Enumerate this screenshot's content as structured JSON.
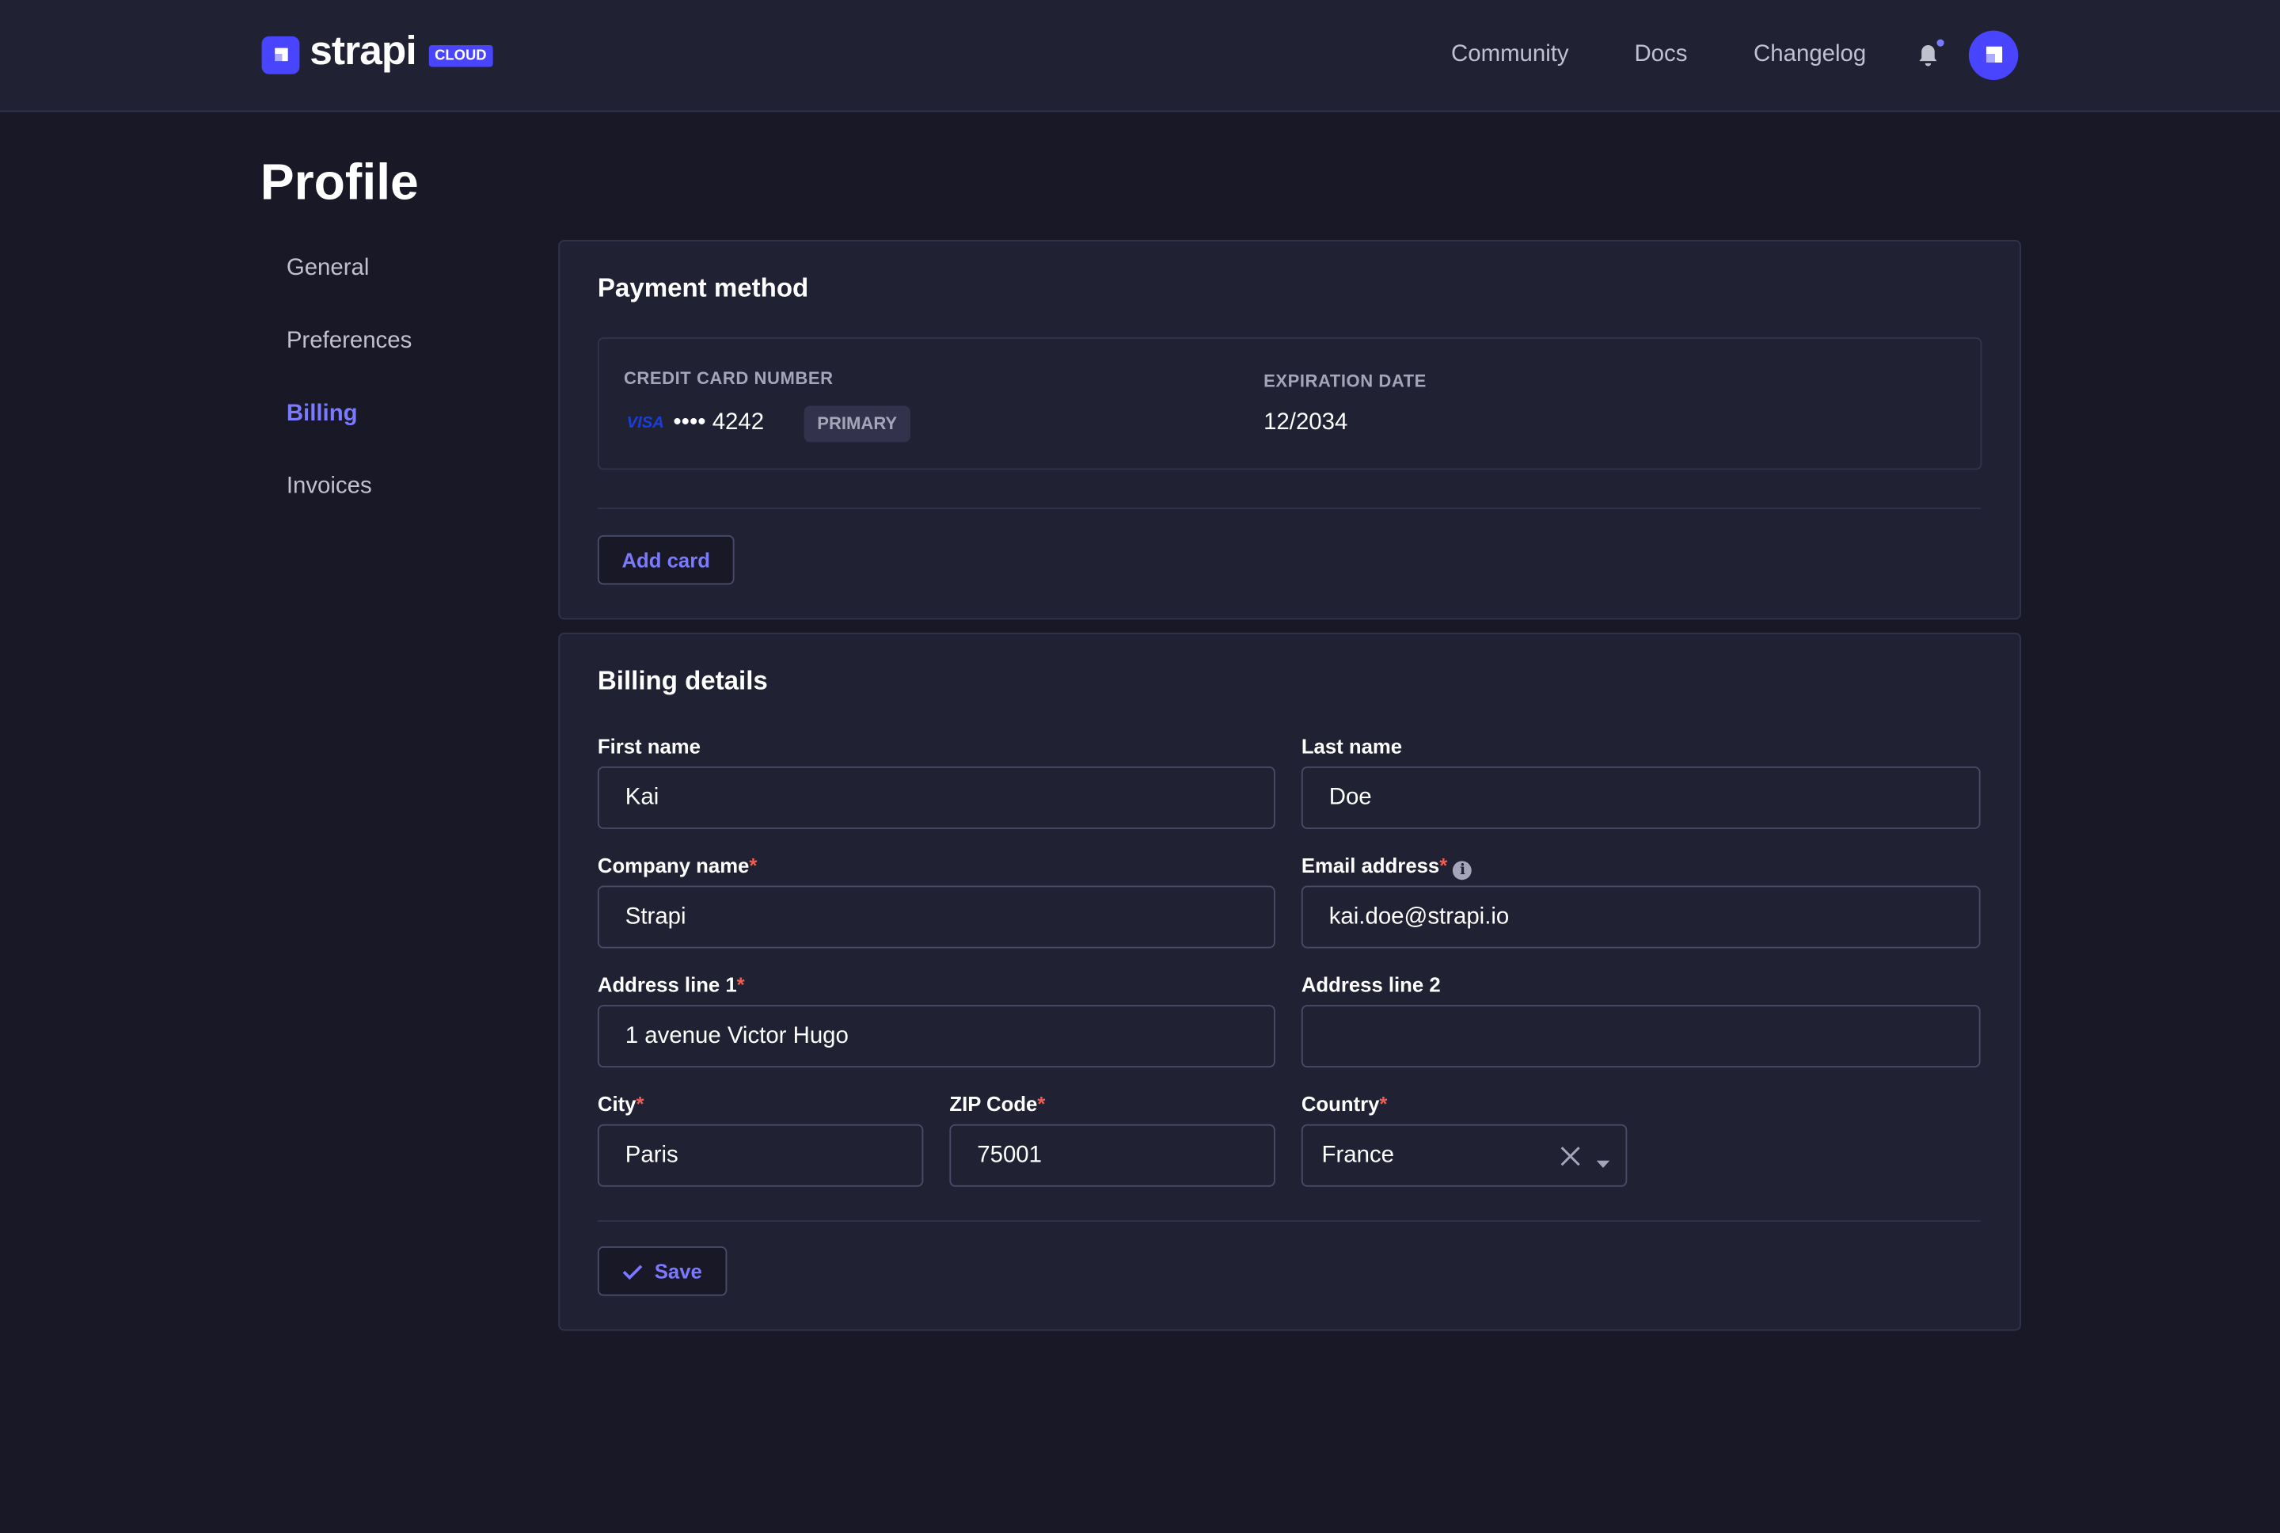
{
  "header": {
    "brand": "strapi",
    "brand_badge": "CLOUD",
    "nav": [
      "Community",
      "Docs",
      "Changelog"
    ],
    "icons": [
      "bell-icon",
      "avatar"
    ]
  },
  "page": {
    "title": "Profile"
  },
  "sidebar": {
    "items": [
      {
        "label": "General"
      },
      {
        "label": "Preferences"
      },
      {
        "label": "Billing",
        "active": true
      },
      {
        "label": "Invoices"
      }
    ]
  },
  "payment": {
    "title": "Payment method",
    "card_label": "CREDIT CARD NUMBER",
    "brand": "VISA",
    "masked": "•••• 4242",
    "primary_badge": "PRIMARY",
    "exp_label": "EXPIRATION DATE",
    "exp_value": "12/2034",
    "add_card": "Add card"
  },
  "billing": {
    "title": "Billing details",
    "first_name": {
      "label": "First name",
      "value": "Kai"
    },
    "last_name": {
      "label": "Last name",
      "value": "Doe"
    },
    "company": {
      "label": "Company name",
      "value": "Strapi",
      "required": true
    },
    "email": {
      "label": "Email address",
      "value": "kai.doe@strapi.io",
      "required": true
    },
    "address1": {
      "label": "Address line 1",
      "value": "1 avenue Victor Hugo",
      "required": true
    },
    "address2": {
      "label": "Address line 2",
      "value": ""
    },
    "city": {
      "label": "City",
      "value": "Paris",
      "required": true
    },
    "zip": {
      "label": "ZIP Code",
      "value": "75001",
      "required": true
    },
    "country": {
      "label": "Country",
      "value": "France",
      "required": true
    },
    "required_mark": "*",
    "save": "Save"
  },
  "colors": {
    "primary": "#4945ff",
    "accent": "#7b79ff",
    "background": "#181826",
    "surface": "#212134",
    "required": "#ee5e52"
  }
}
